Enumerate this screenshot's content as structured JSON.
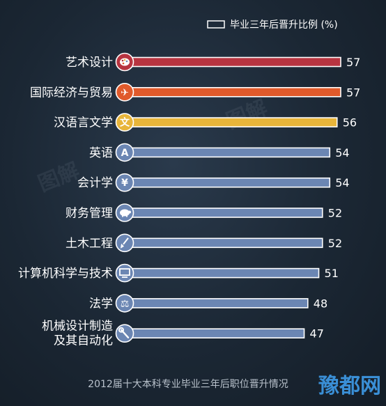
{
  "chart_data": {
    "type": "bar",
    "orientation": "horizontal",
    "title": "2012届十大本科专业毕业三年后职位晋升情况",
    "legend": {
      "label": "毕业三年后晋升比例 (%)",
      "position": "top-right"
    },
    "xlim": [
      0,
      60
    ],
    "grid": false,
    "categories": [
      "艺术设计",
      "国际经济与贸易",
      "汉语言文学",
      "英语",
      "会计学",
      "财务管理",
      "土木工程",
      "计算机科学与技术",
      "法学",
      "机械设计制造及其自动化"
    ],
    "category_lines": [
      [
        "艺术设计"
      ],
      [
        "国际经济与贸易"
      ],
      [
        "汉语言文学"
      ],
      [
        "英语"
      ],
      [
        "会计学"
      ],
      [
        "财务管理"
      ],
      [
        "土木工程"
      ],
      [
        "计算机科学与技术"
      ],
      [
        "法学"
      ],
      [
        "机械设计制造",
        "及其自动化"
      ]
    ],
    "values": [
      57,
      57,
      56,
      54,
      54,
      52,
      52,
      51,
      48,
      47
    ],
    "icons": [
      "palette-icon",
      "airplane-icon",
      "wen-character-icon",
      "letter-a-icon",
      "yen-icon",
      "piggy-bank-icon",
      "shovel-icon",
      "monitor-icon",
      "scales-icon",
      "wrench-icon"
    ],
    "icon_glyphs": [
      "",
      "✈",
      "文",
      "A",
      "¥",
      "",
      "",
      "",
      "⚖",
      ""
    ],
    "bar_colors": [
      "#b73440",
      "#e05a2b",
      "#e8b53a",
      "#6b86b3",
      "#6b86b3",
      "#6b86b3",
      "#6b86b3",
      "#6b86b3",
      "#6b86b3",
      "#6b86b3"
    ],
    "icon_colors": [
      "#b73440",
      "#e05a2b",
      "#e8b53a",
      "#6b86b3",
      "#6b86b3",
      "#6b86b3",
      "#6b86b3",
      "#6b86b3",
      "#6b86b3",
      "#6b86b3"
    ]
  },
  "colors": {
    "background": "#1b2734",
    "text": "#ffffff",
    "subtitle": "#b9c2cc",
    "watermark": "#8b98a6",
    "brand_logo": "#3a8fd6"
  },
  "watermark_logo": "豫都网"
}
